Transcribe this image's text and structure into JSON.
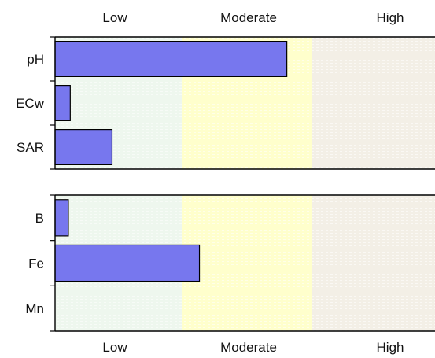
{
  "chart_data": [
    {
      "type": "bar",
      "orientation": "horizontal",
      "zones": [
        "Low",
        "Moderate",
        "High"
      ],
      "zone_colors": [
        "#eef7ee",
        "#ffffcc",
        "#f3efe6"
      ],
      "bar_color": "#7777ee",
      "categories": [
        "pH",
        "ECw",
        "SAR"
      ],
      "values": [
        0.61,
        0.04,
        0.15
      ],
      "xlim": [
        0,
        1
      ],
      "zone_labels_position": "top"
    },
    {
      "type": "bar",
      "orientation": "horizontal",
      "zones": [
        "Low",
        "Moderate",
        "High"
      ],
      "zone_colors": [
        "#eef7ee",
        "#ffffcc",
        "#f3efe6"
      ],
      "bar_color": "#7777ee",
      "categories": [
        "B",
        "Fe",
        "Mn"
      ],
      "values": [
        0.035,
        0.38,
        0
      ],
      "xlim": [
        0,
        1
      ],
      "zone_labels_position": "bottom"
    }
  ]
}
